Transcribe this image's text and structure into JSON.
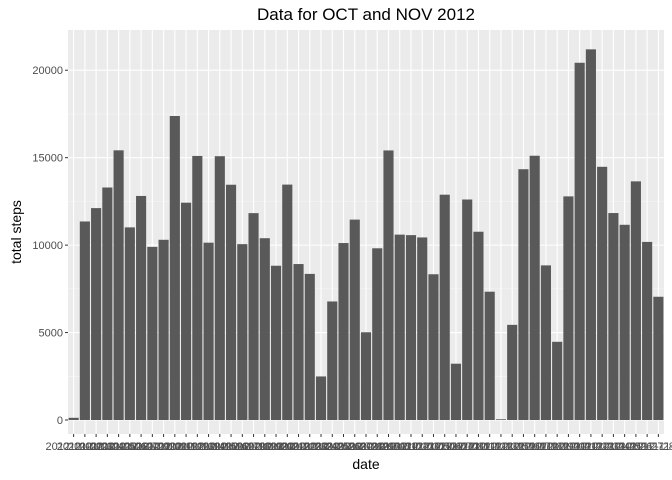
{
  "chart_data": {
    "type": "bar",
    "title": "Data for OCT and NOV 2012",
    "xlabel": "date",
    "ylabel": "total steps",
    "ylim": [
      -800,
      22300
    ],
    "yticks": [
      0,
      5000,
      10000,
      15000,
      20000
    ],
    "grid": true,
    "categories": [
      "2012-10-02",
      "2012-10-03",
      "2012-10-04",
      "2012-10-05",
      "2012-10-06",
      "2012-10-07",
      "2012-10-09",
      "2012-10-10",
      "2012-10-11",
      "2012-10-12",
      "2012-10-13",
      "2012-10-14",
      "2012-10-15",
      "2012-10-16",
      "2012-10-17",
      "2012-10-18",
      "2012-10-19",
      "2012-10-20",
      "2012-10-21",
      "2012-10-22",
      "2012-10-23",
      "2012-10-24",
      "2012-10-25",
      "2012-10-26",
      "2012-10-27",
      "2012-10-28",
      "2012-10-29",
      "2012-10-30",
      "2012-10-31",
      "2012-11-02",
      "2012-11-03",
      "2012-11-05",
      "2012-11-06",
      "2012-11-07",
      "2012-11-08",
      "2012-11-11",
      "2012-11-12",
      "2012-11-13",
      "2012-11-15",
      "2012-11-16",
      "2012-11-17",
      "2012-11-18",
      "2012-11-19",
      "2012-11-20",
      "2012-11-21",
      "2012-11-22",
      "2012-11-23",
      "2012-11-24",
      "2012-11-25",
      "2012-11-26",
      "2012-11-27",
      "2012-11-28",
      "2012-11-29"
    ],
    "values": [
      126,
      11352,
      12116,
      13294,
      15420,
      11015,
      12811,
      9900,
      10304,
      17382,
      12426,
      15098,
      10139,
      15084,
      13452,
      10056,
      11829,
      10395,
      8821,
      13460,
      8918,
      8355,
      2492,
      6778,
      10119,
      11458,
      5018,
      9819,
      15414,
      10600,
      10571,
      10439,
      8334,
      12883,
      3219,
      12608,
      10765,
      7336,
      41,
      5441,
      14339,
      15110,
      8841,
      4472,
      12787,
      20427,
      21194,
      14478,
      11834,
      11162,
      13646,
      10183,
      7047
    ],
    "bar_color": "#595959",
    "panel_color": "#ebebeb",
    "grid_major_color": "#ffffff"
  }
}
